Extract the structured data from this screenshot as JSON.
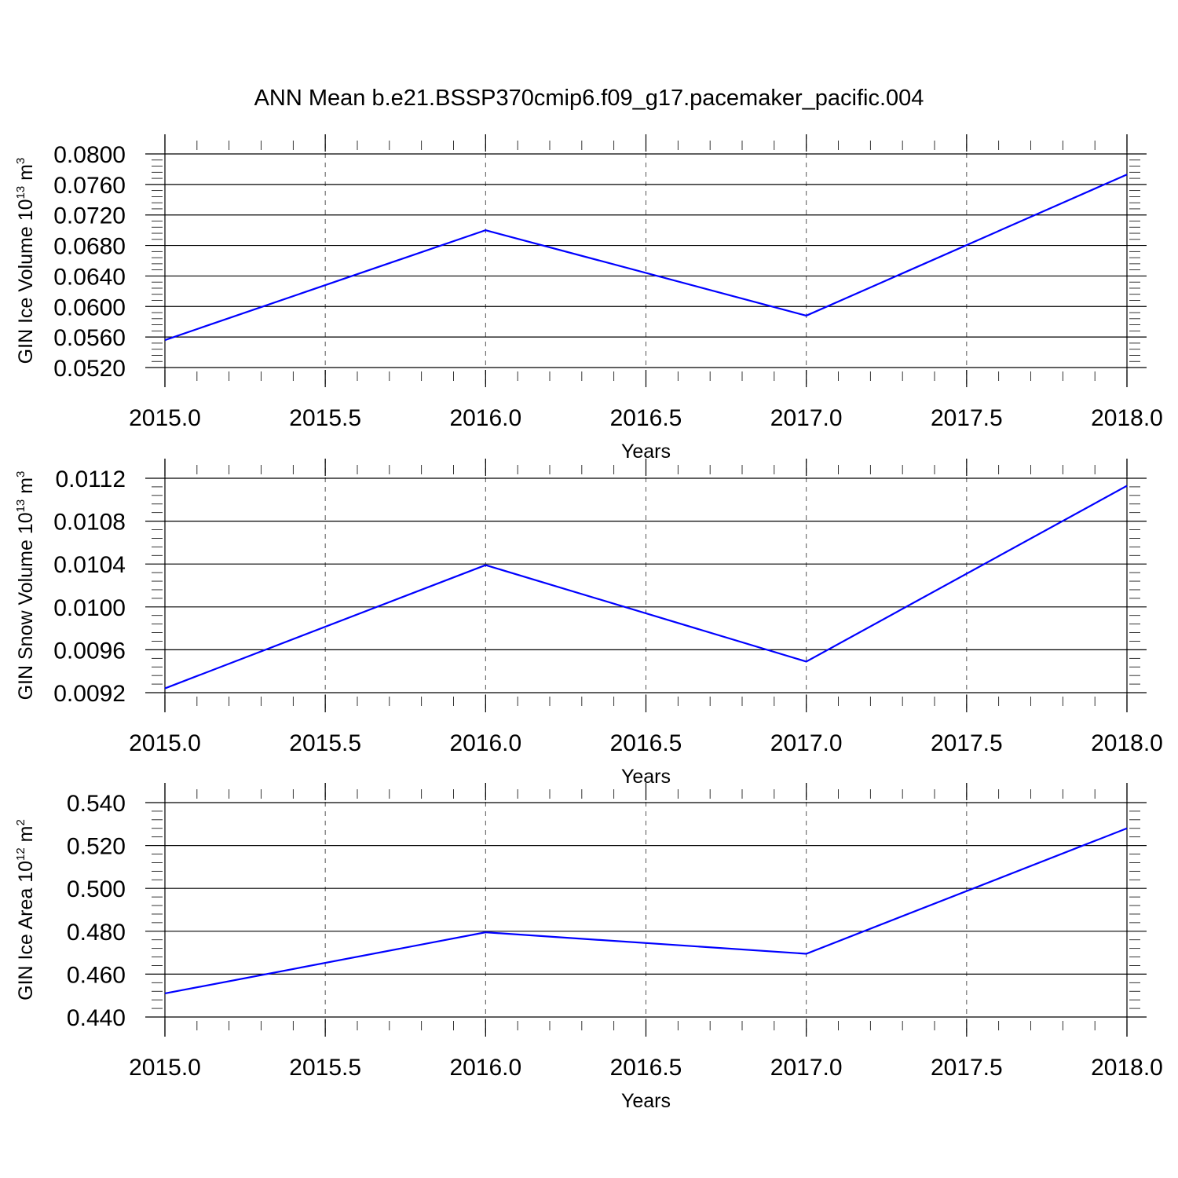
{
  "figure": {
    "title": "ANN Mean b.e21.BSSP370cmip6.f09_g17.pacemaker_pacific.004"
  },
  "chart_data": [
    {
      "type": "line",
      "title": "",
      "xlabel": "Years",
      "ylabel": {
        "main": "GIN Ice Volume 10",
        "sup1": "13",
        "mid": " m",
        "sup2": "3"
      },
      "xlim": [
        2015.0,
        2018.0
      ],
      "ylim": [
        0.052,
        0.08
      ],
      "grid": "x-dashed",
      "x_ticks": [
        "2015.0",
        "2015.5",
        "2016.0",
        "2016.5",
        "2017.0",
        "2017.5",
        "2018.0"
      ],
      "y_ticks": [
        "0.0520",
        "0.0560",
        "0.0600",
        "0.0640",
        "0.0680",
        "0.0720",
        "0.0760",
        "0.0800"
      ],
      "x": [
        2015,
        2016,
        2017,
        2018
      ],
      "series": [
        {
          "values": [
            0.0556,
            0.07,
            0.0588,
            0.0773
          ],
          "color": "#0000ff"
        }
      ]
    },
    {
      "type": "line",
      "title": "",
      "xlabel": "Years",
      "ylabel": {
        "main": "GIN Snow Volume 10",
        "sup1": "13",
        "mid": " m",
        "sup2": "3"
      },
      "xlim": [
        2015.0,
        2018.0
      ],
      "ylim": [
        0.0092,
        0.0112
      ],
      "grid": "x-dashed",
      "x_ticks": [
        "2015.0",
        "2015.5",
        "2016.0",
        "2016.5",
        "2017.0",
        "2017.5",
        "2018.0"
      ],
      "y_ticks": [
        "0.0092",
        "0.0096",
        "0.0100",
        "0.0104",
        "0.0108",
        "0.0112"
      ],
      "x": [
        2015,
        2016,
        2017,
        2018
      ],
      "series": [
        {
          "values": [
            0.00924,
            0.01039,
            0.00949,
            0.01113
          ],
          "color": "#0000ff"
        }
      ]
    },
    {
      "type": "line",
      "title": "",
      "xlabel": "Years",
      "ylabel": {
        "main": "GIN Ice Area 10",
        "sup1": "12",
        "mid": " m",
        "sup2": "2"
      },
      "xlim": [
        2015.0,
        2018.0
      ],
      "ylim": [
        0.44,
        0.54
      ],
      "grid": "x-dashed",
      "x_ticks": [
        "2015.0",
        "2015.5",
        "2016.0",
        "2016.5",
        "2017.0",
        "2017.5",
        "2018.0"
      ],
      "y_ticks": [
        "0.440",
        "0.460",
        "0.480",
        "0.500",
        "0.520",
        "0.540"
      ],
      "x": [
        2015,
        2016,
        2017,
        2018
      ],
      "series": [
        {
          "values": [
            0.451,
            0.4795,
            0.4695,
            0.528
          ],
          "color": "#0000ff"
        }
      ]
    }
  ]
}
